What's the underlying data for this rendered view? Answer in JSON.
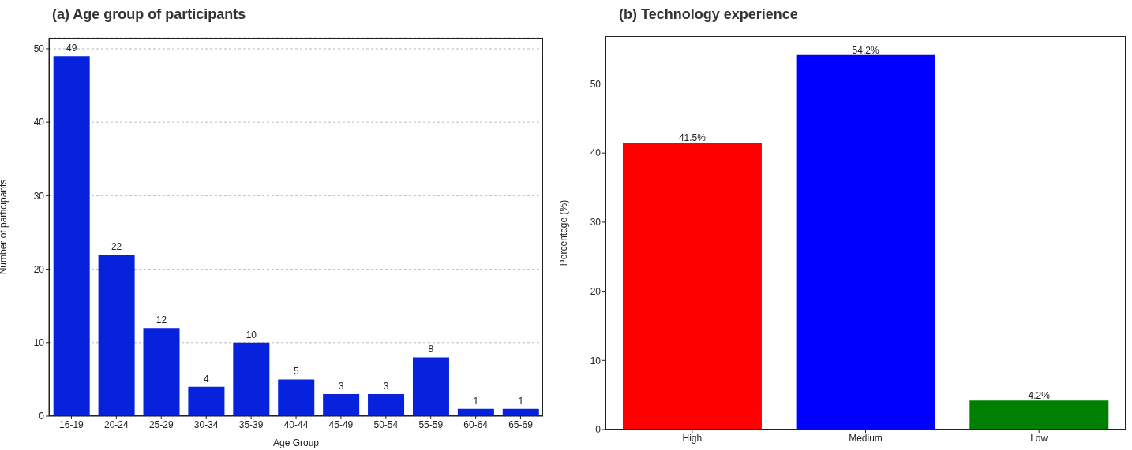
{
  "chart_data": [
    {
      "type": "bar",
      "title": "(a) Age group of participants",
      "xlabel": "Age Group",
      "ylabel": "Number of participants",
      "categories": [
        "16-19",
        "20-24",
        "25-29",
        "30-34",
        "35-39",
        "40-44",
        "45-49",
        "50-54",
        "55-59",
        "60-64",
        "65-69"
      ],
      "values": [
        49,
        22,
        12,
        4,
        10,
        5,
        3,
        3,
        8,
        1,
        1
      ],
      "color": "#0622dc",
      "ylim": [
        0,
        51.5
      ],
      "yticks": [
        0,
        10,
        20,
        30,
        40,
        50
      ],
      "grid": "y",
      "data_labels": true
    },
    {
      "type": "bar",
      "title": "(b) Technology experience",
      "ylabel": "Percentage (%)",
      "categories": [
        "High",
        "Medium",
        "Low"
      ],
      "values": [
        41.5,
        54.2,
        4.2
      ],
      "colors": [
        "#ff0000",
        "#0000ff",
        "#008000"
      ],
      "value_labels": [
        "41.5%",
        "54.2%",
        "4.2%"
      ],
      "ylim": [
        0,
        56.9
      ],
      "yticks": [
        0,
        10,
        20,
        30,
        40,
        50
      ],
      "grid": false
    }
  ]
}
